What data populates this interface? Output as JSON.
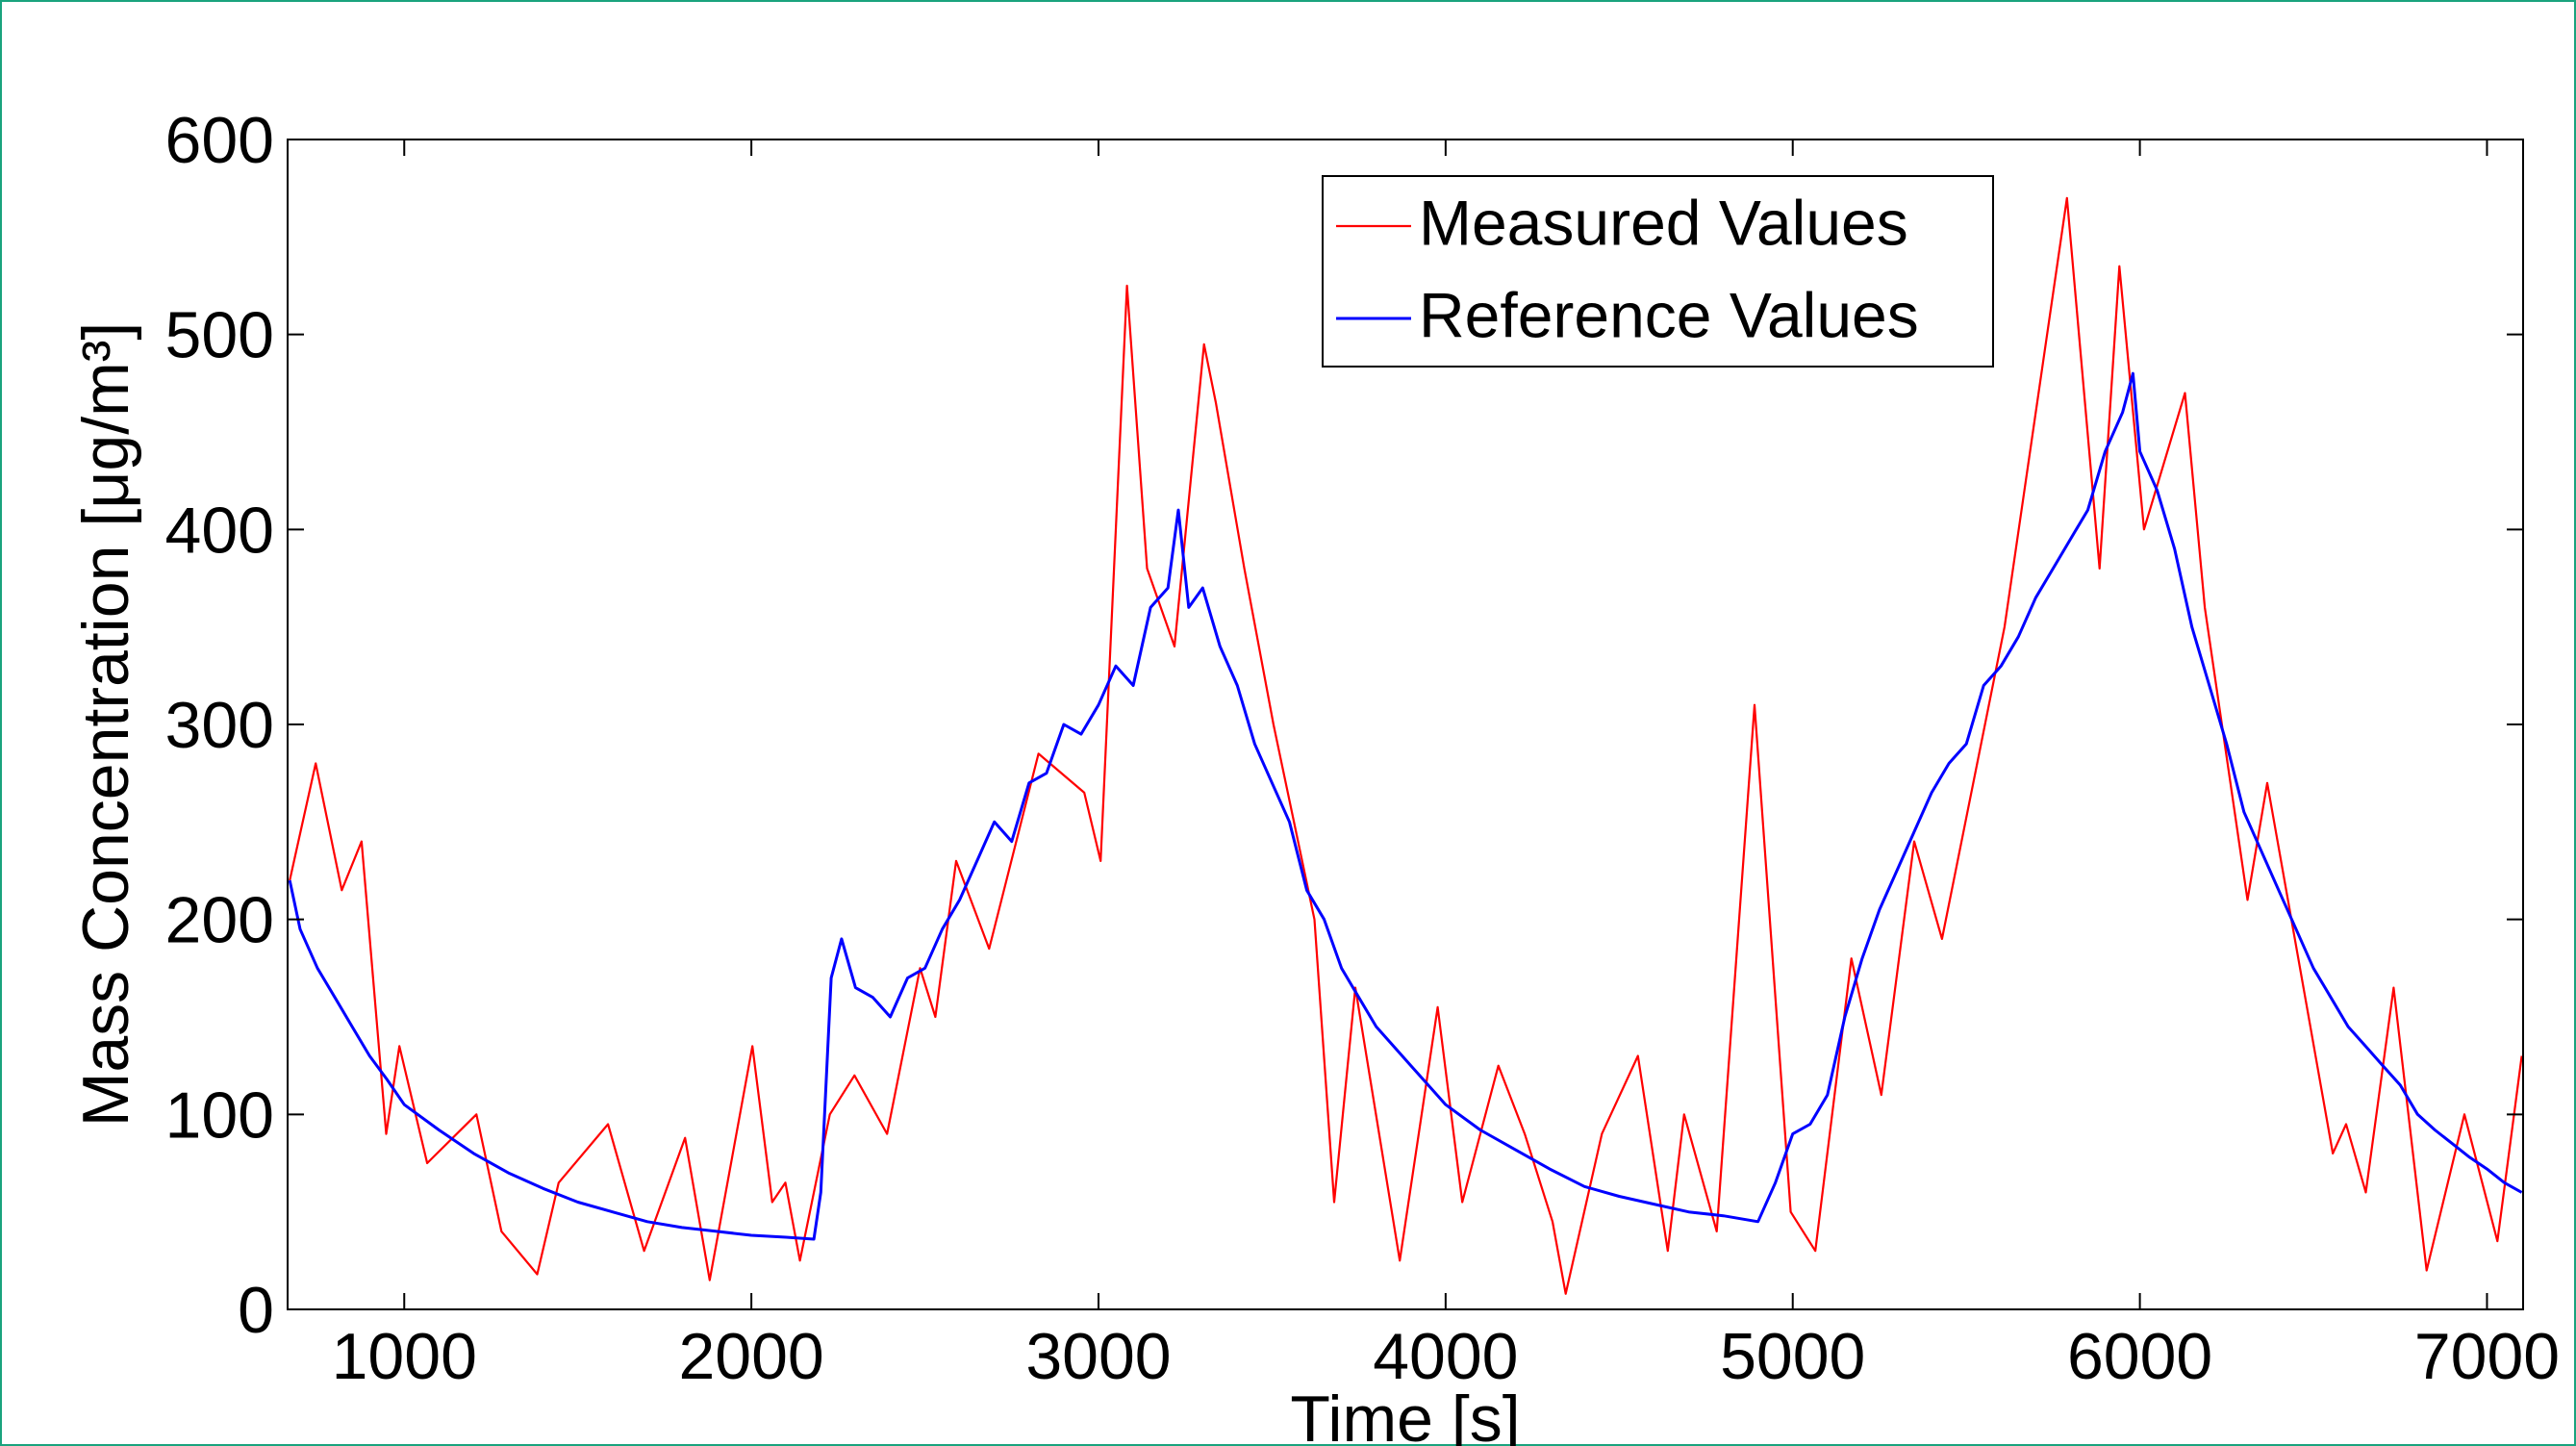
{
  "chart_data": {
    "type": "line",
    "x_label": "Time [s]",
    "y_label": "Mass Concentration [μg/m³]",
    "xlim": [
      664,
      7104
    ],
    "ylim": [
      0,
      600
    ],
    "xticks": [
      1000,
      2000,
      3000,
      4000,
      5000,
      6000,
      7000
    ],
    "yticks": [
      0,
      100,
      200,
      300,
      400,
      500,
      600
    ],
    "grid": false,
    "legend_position": "upper right",
    "series": [
      {
        "name": "Measured Values",
        "color": "#ff0000",
        "x": [
          670,
          745,
          820,
          877,
          948,
          986,
          1066,
          1208,
          1280,
          1383,
          1445,
          1587,
          1691,
          1809,
          1880,
          2003,
          2060,
          2098,
          2140,
          2226,
          2297,
          2391,
          2486,
          2530,
          2590,
          2685,
          2827,
          2959,
          3006,
          3082,
          3140,
          3219,
          3304,
          3338,
          3420,
          3504,
          3622,
          3679,
          3740,
          3868,
          3977,
          4048,
          4152,
          4228,
          4308,
          4346,
          4450,
          4554,
          4640,
          4687,
          4781,
          4890,
          4994,
          5065,
          5169,
          5255,
          5350,
          5430,
          5610,
          5790,
          5884,
          5941,
          6012,
          6130,
          6187,
          6310,
          6367,
          6556,
          6594,
          6651,
          6731,
          6826,
          6935,
          7030,
          7100
        ],
        "values": [
          220,
          280,
          215,
          240,
          90,
          135,
          75,
          100,
          40,
          18,
          65,
          95,
          30,
          88,
          15,
          135,
          55,
          65,
          25,
          100,
          120,
          90,
          175,
          150,
          230,
          185,
          285,
          265,
          230,
          525,
          380,
          340,
          495,
          465,
          380,
          300,
          200,
          55,
          165,
          25,
          155,
          55,
          125,
          90,
          45,
          8,
          90,
          130,
          30,
          100,
          40,
          310,
          50,
          30,
          180,
          110,
          240,
          190,
          350,
          570,
          380,
          535,
          400,
          470,
          360,
          210,
          270,
          80,
          95,
          60,
          165,
          20,
          100,
          35,
          130
        ]
      },
      {
        "name": "Reference Values",
        "color": "#0000ff",
        "x": [
          670,
          700,
          750,
          800,
          850,
          900,
          950,
          1000,
          1100,
          1200,
          1300,
          1400,
          1500,
          1600,
          1700,
          1800,
          1900,
          2000,
          2100,
          2180,
          2200,
          2230,
          2260,
          2300,
          2350,
          2400,
          2450,
          2500,
          2550,
          2600,
          2650,
          2700,
          2750,
          2800,
          2850,
          2900,
          2950,
          3000,
          3050,
          3100,
          3150,
          3200,
          3230,
          3260,
          3300,
          3350,
          3400,
          3450,
          3500,
          3550,
          3600,
          3650,
          3700,
          3750,
          3800,
          3850,
          3900,
          3950,
          4000,
          4100,
          4200,
          4300,
          4400,
          4500,
          4600,
          4700,
          4800,
          4900,
          4950,
          5000,
          5050,
          5100,
          5150,
          5200,
          5250,
          5300,
          5350,
          5400,
          5450,
          5500,
          5550,
          5600,
          5650,
          5700,
          5750,
          5800,
          5850,
          5900,
          5950,
          5980,
          6000,
          6050,
          6100,
          6150,
          6200,
          6250,
          6300,
          6350,
          6400,
          6450,
          6500,
          6550,
          6600,
          6650,
          6700,
          6750,
          6800,
          6850,
          6900,
          6950,
          7000,
          7050,
          7100
        ],
        "values": [
          220,
          195,
          175,
          160,
          145,
          130,
          118,
          105,
          92,
          80,
          70,
          62,
          55,
          50,
          45,
          42,
          40,
          38,
          37,
          36,
          60,
          170,
          190,
          165,
          160,
          150,
          170,
          175,
          195,
          210,
          230,
          250,
          240,
          270,
          275,
          300,
          295,
          310,
          330,
          320,
          360,
          370,
          410,
          360,
          370,
          340,
          320,
          290,
          270,
          250,
          215,
          200,
          175,
          160,
          145,
          135,
          125,
          115,
          105,
          92,
          82,
          72,
          63,
          58,
          54,
          50,
          48,
          45,
          65,
          90,
          95,
          110,
          150,
          180,
          205,
          225,
          245,
          265,
          280,
          290,
          320,
          330,
          345,
          365,
          380,
          395,
          410,
          440,
          460,
          480,
          440,
          420,
          390,
          350,
          320,
          290,
          255,
          235,
          215,
          195,
          175,
          160,
          145,
          135,
          125,
          115,
          100,
          92,
          85,
          78,
          72,
          65,
          60
        ]
      }
    ]
  }
}
